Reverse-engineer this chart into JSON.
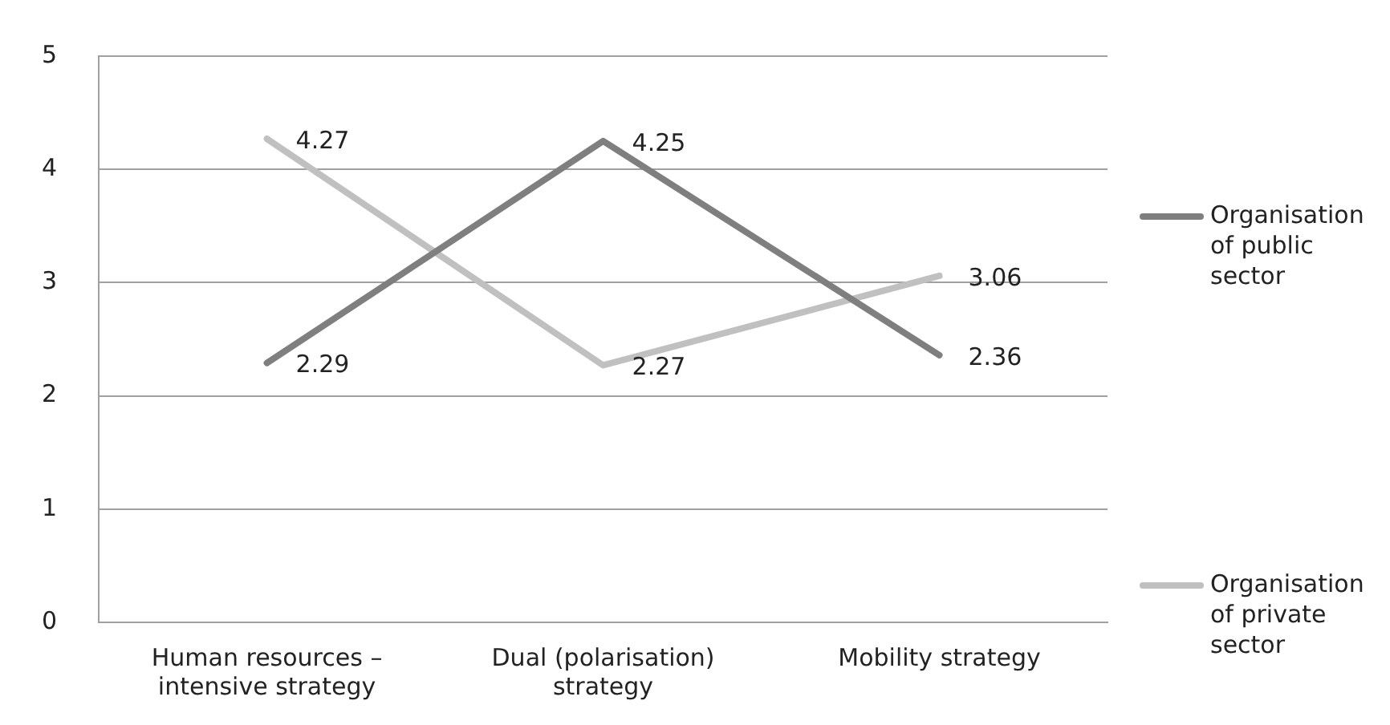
{
  "chart_data": {
    "type": "line",
    "categories": [
      "Human resources – intensive strategy",
      "Dual (polarisation) strategy",
      "Mobility strategy"
    ],
    "series": [
      {
        "name": "Organisation of public sector",
        "color": "#7f7f7f",
        "values": [
          2.29,
          4.25,
          2.36
        ]
      },
      {
        "name": "Organisation of private sector",
        "color": "#c0c0c0",
        "values": [
          4.27,
          2.27,
          3.06
        ]
      }
    ],
    "ylim": [
      0,
      5
    ],
    "yticks": [
      0,
      1,
      2,
      3,
      4,
      5
    ],
    "grid": "y",
    "legend": "right",
    "marker": "none",
    "line_style": "solid",
    "data_labels": true
  }
}
